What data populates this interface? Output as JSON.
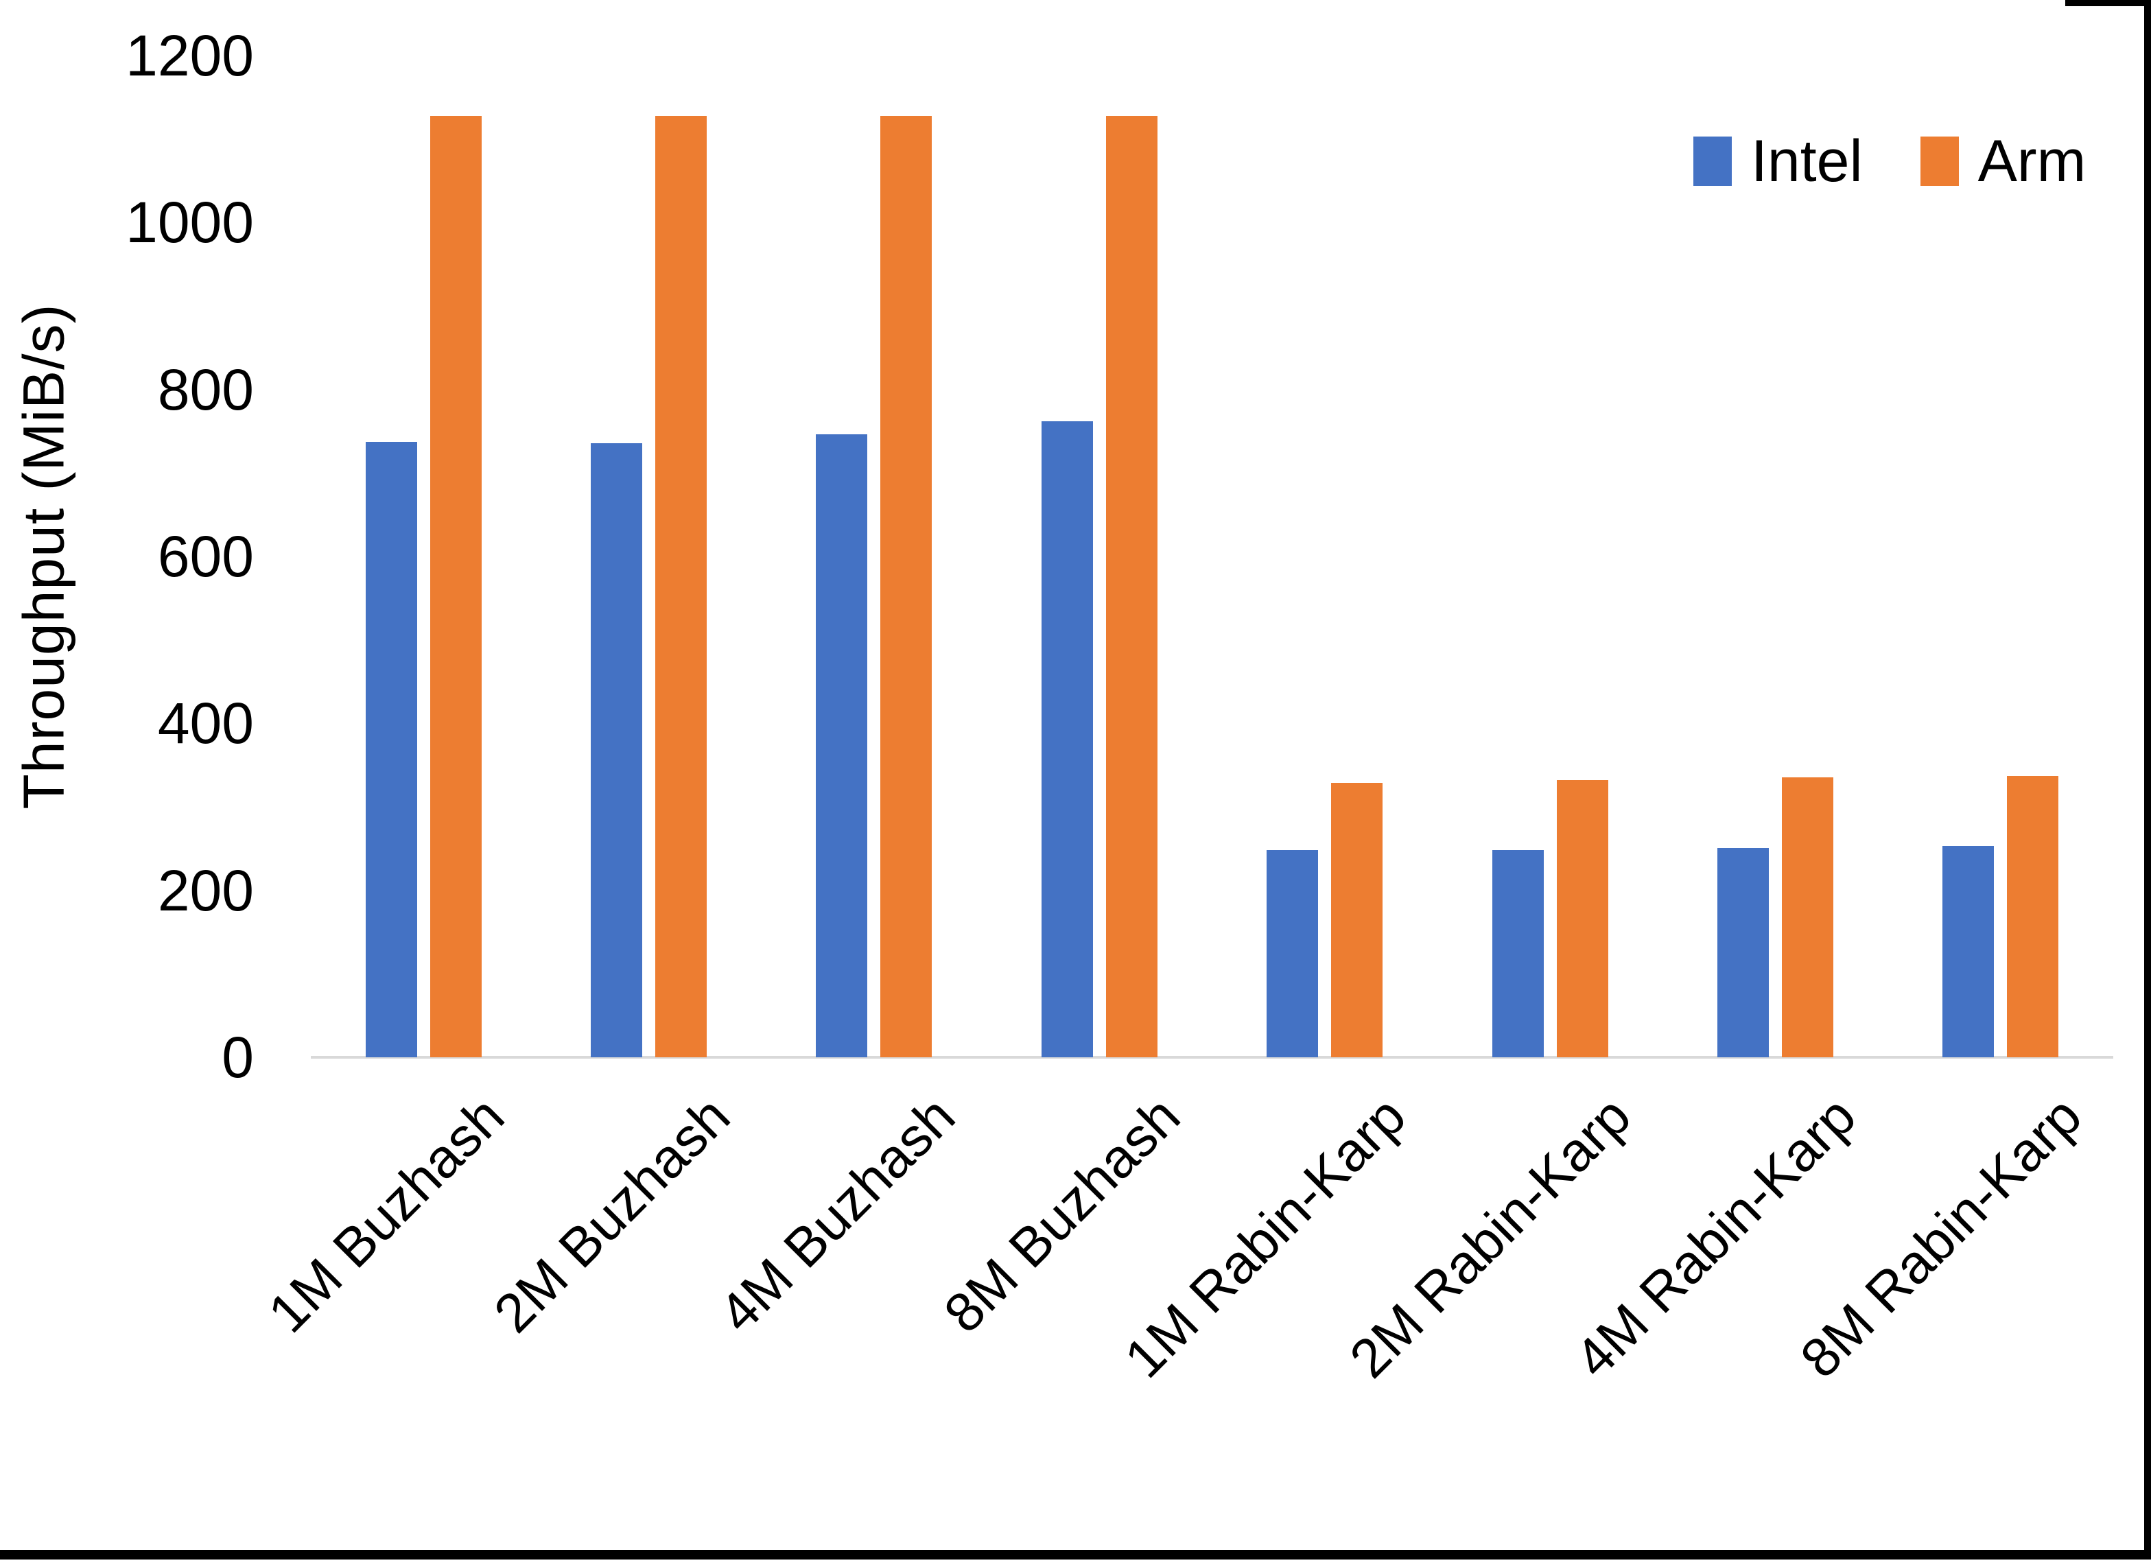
{
  "chart_data": {
    "type": "bar",
    "title": "",
    "categories": [
      "1M Buzhash",
      "2M Buzhash",
      "4M Buzhash",
      "8M Buzhash",
      "1M Rabin-Karp",
      "2M Rabin-Karp",
      "4M Rabin-Karp",
      "8M Rabin-Karp"
    ],
    "series": [
      {
        "name": "Intel",
        "color": "#4472C4",
        "values": [
          737,
          736,
          746,
          762,
          248,
          248,
          251,
          253
        ]
      },
      {
        "name": "Arm",
        "color": "#ED7D31",
        "values": [
          1128,
          1128,
          1128,
          1128,
          329,
          332,
          335,
          337
        ]
      }
    ],
    "xlabel": "",
    "ylabel": "Throughput (MiB/s)",
    "ylim": [
      0,
      1200
    ],
    "yticks": [
      0,
      200,
      400,
      600,
      800,
      1000,
      1200
    ],
    "grid": false,
    "legend_position": "top-right",
    "axis_line_color": "#D9D9D9",
    "text_color": "#000000",
    "background_color": "#FFFFFF"
  }
}
